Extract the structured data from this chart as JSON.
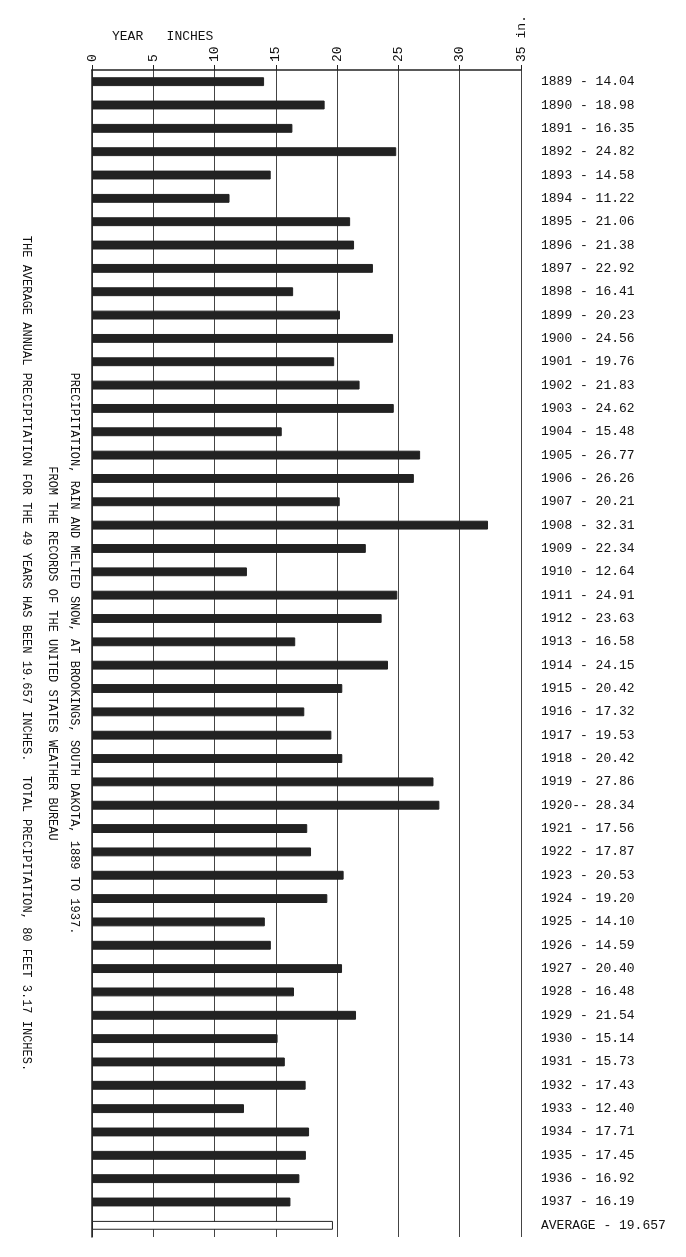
{
  "chart_data": {
    "type": "bar",
    "orientation": "horizontal",
    "title": "PRECIPITATION, RAIN AND MELTED SNOW, AT BROOKINGS, SOUTH DAKOTA, 1889 TO 1937.",
    "subtitle": "FROM THE RECORDS OF THE UNITED STATES WEATHER BUREAU",
    "annotations": [
      "THE AVERAGE ANNUAL PRECIPITATION FOR THE 49 YEARS HAS BEEN 19.657 INCHES.  TOTAL PRECIPITATION, 80 FEET 3.17 INCHES."
    ],
    "ylabel": "YEAR   INCHES",
    "categories": [
      "1889 -",
      "1890 -",
      "1891 -",
      "1892 -",
      "1893 -",
      "1894 -",
      "1895 -",
      "1896 -",
      "1897 -",
      "1898 -",
      "1899 -",
      "1900 -",
      "1901 -",
      "1902 -",
      "1903 -",
      "1904 -",
      "1905 -",
      "1906 -",
      "1907 -",
      "1908 -",
      "1909 -",
      "1910 -",
      "1911 -",
      "1912 -",
      "1913 -",
      "1914 -",
      "1915 -",
      "1916 -",
      "1917 -",
      "1918 -",
      "1919 -",
      "1920--",
      "1921 -",
      "1922 -",
      "1923 -",
      "1924 -",
      "1925 -",
      "1926 -",
      "1927 -",
      "1928 -",
      "1929 -",
      "1930 -",
      "1931 -",
      "1932 -",
      "1933 -",
      "1934 -",
      "1935 -",
      "1936 -",
      "1937 -",
      "AVERAGE -"
    ],
    "values": [
      14.04,
      18.98,
      16.35,
      24.82,
      14.58,
      11.22,
      21.06,
      21.38,
      22.92,
      16.41,
      20.23,
      24.56,
      19.76,
      21.83,
      24.62,
      15.48,
      26.77,
      26.26,
      20.21,
      32.31,
      22.34,
      12.64,
      24.91,
      23.63,
      16.58,
      24.15,
      20.42,
      17.32,
      19.53,
      20.42,
      27.86,
      28.34,
      17.56,
      17.87,
      20.53,
      19.2,
      14.1,
      14.59,
      20.4,
      16.48,
      21.54,
      15.14,
      15.73,
      17.43,
      12.4,
      17.71,
      17.45,
      16.92,
      16.19,
      19.657
    ],
    "value_labels": [
      "14.04",
      "18.98",
      "16.35",
      "24.82",
      "14.58",
      "11.22",
      "21.06",
      "21.38",
      "22.92",
      "16.41",
      "20.23",
      "24.56",
      "19.76",
      "21.83",
      "24.62",
      "15.48",
      "26.77",
      "26.26",
      "20.21",
      "32.31",
      "22.34",
      "12.64",
      "24.91",
      "23.63",
      "16.58",
      "24.15",
      "20.42",
      "17.32",
      "19.53",
      "20.42",
      "27.86",
      "28.34",
      "17.56",
      "17.87",
      "20.53",
      "19.20",
      "14.10",
      "14.59",
      "20.40",
      "16.48",
      "21.54",
      "15.14",
      "15.73",
      "17.43",
      "12.40",
      "17.71",
      "17.45",
      "16.92",
      "16.19",
      "19.657"
    ],
    "colors": [
      "#222222",
      "#222222",
      "#222222",
      "#222222",
      "#222222",
      "#222222",
      "#222222",
      "#222222",
      "#222222",
      "#222222",
      "#222222",
      "#222222",
      "#222222",
      "#222222",
      "#222222",
      "#222222",
      "#222222",
      "#222222",
      "#222222",
      "#222222",
      "#222222",
      "#222222",
      "#222222",
      "#222222",
      "#222222",
      "#222222",
      "#222222",
      "#222222",
      "#222222",
      "#222222",
      "#222222",
      "#222222",
      "#222222",
      "#222222",
      "#222222",
      "#222222",
      "#222222",
      "#222222",
      "#222222",
      "#222222",
      "#222222",
      "#222222",
      "#222222",
      "#222222",
      "#222222",
      "#222222",
      "#222222",
      "#222222",
      "#222222",
      "#ffffff"
    ],
    "xlim": [
      0,
      35
    ],
    "xticks": [
      0,
      5,
      10,
      15,
      20,
      25,
      30,
      {
        "value": 35,
        "label": "35 in."
      }
    ],
    "grid": "x"
  }
}
